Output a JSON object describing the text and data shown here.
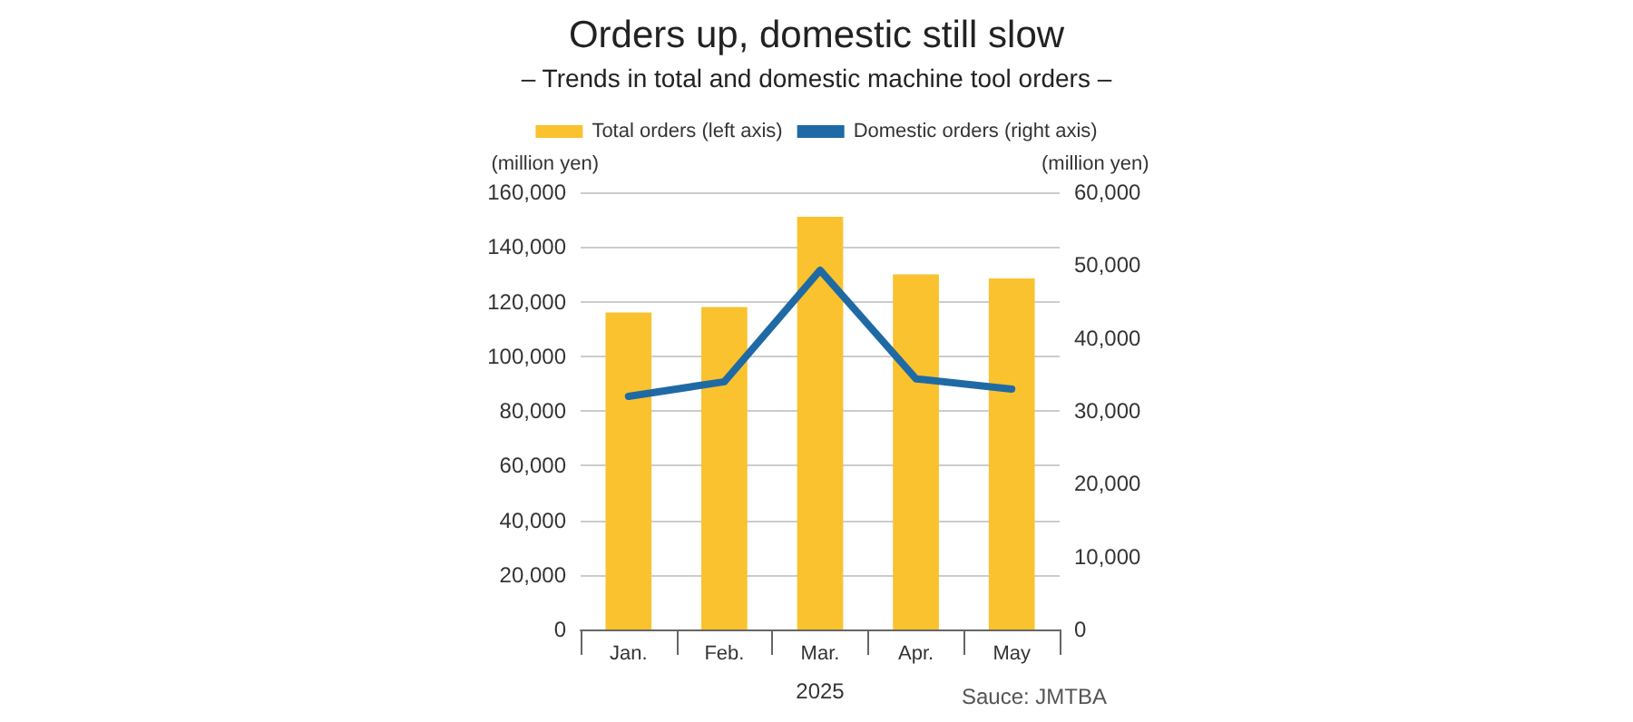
{
  "chart_data": {
    "type": "bar",
    "title": "Orders up, domestic still slow",
    "subtitle": "– Trends in total and domestic machine tool orders –",
    "categories": [
      "Jan.",
      "Feb.",
      "Mar.",
      "Apr.",
      "May"
    ],
    "xlabel": "2025",
    "ylabel": "(million yen)",
    "y2label": "(million yen)",
    "series": [
      {
        "name": "Total orders (left axis)",
        "color": "#f9c22e",
        "values": [
          116000,
          118000,
          151000,
          130000,
          128500
        ]
      },
      {
        "name": "Domestic orders (right axis)",
        "type": "line",
        "axis": "y2",
        "color": "#1f6aa5",
        "values": [
          32000,
          34000,
          49300,
          34400,
          33000
        ]
      }
    ],
    "ylim": [
      0,
      160000
    ],
    "yticks": [
      0,
      {
        "value": 20000,
        "label": "20,000"
      },
      {
        "value": 40000,
        "label": "40,000"
      },
      {
        "value": 60000,
        "label": "60,000"
      },
      {
        "value": 80000,
        "label": "80,000"
      },
      {
        "value": 100000,
        "label": "100,000"
      },
      {
        "value": 120000,
        "label": "120,000"
      },
      {
        "value": 140000,
        "label": "140,000"
      },
      {
        "value": 160000,
        "label": "160,000"
      }
    ],
    "y2lim": [
      0,
      60000
    ],
    "y2ticks": [
      0,
      {
        "value": 10000,
        "label": "10,000"
      },
      {
        "value": 20000,
        "label": "20,000"
      },
      {
        "value": 30000,
        "label": "30,000"
      },
      {
        "value": 40000,
        "label": "40,000"
      },
      {
        "value": 50000,
        "label": "50,000"
      },
      {
        "value": 60000,
        "label": "60,000"
      }
    ],
    "grid": "y",
    "legend": "top",
    "marker": "none",
    "annotations": [
      "Sauce: JMTBA"
    ]
  }
}
